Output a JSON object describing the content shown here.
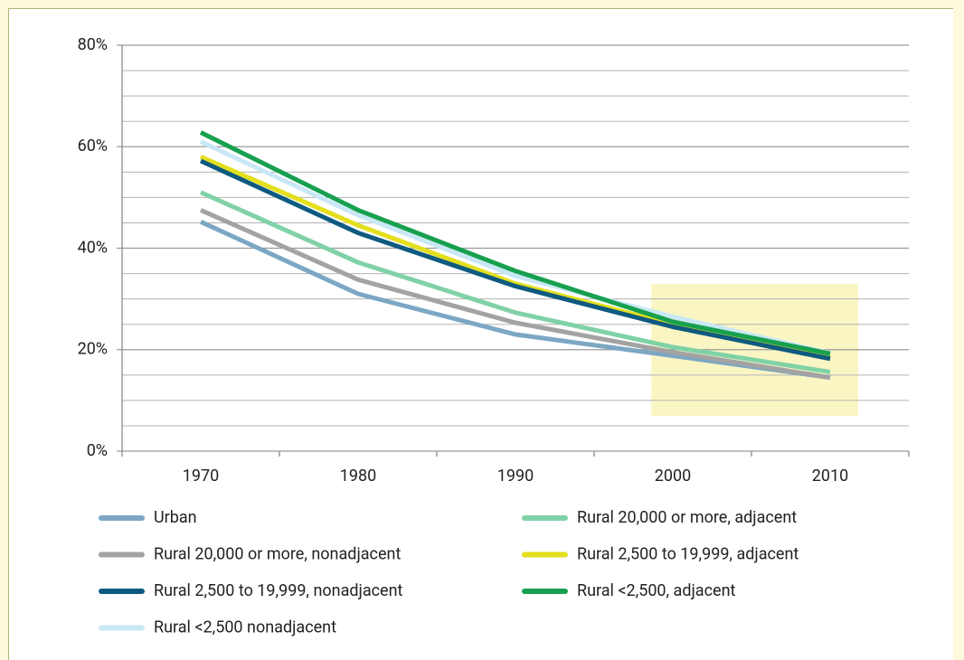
{
  "chart_data": {
    "type": "line",
    "categories": [
      "1970",
      "1980",
      "1990",
      "2000",
      "2010"
    ],
    "series": [
      {
        "name": "Urban",
        "color": "#7ba7c4",
        "values": [
          45.2,
          31,
          23,
          18.8,
          14.5
        ]
      },
      {
        "name": "Rural 20,000 or more, adjacent",
        "color": "#80d2a6",
        "values": [
          51,
          37.2,
          27.3,
          20.5,
          15.6
        ]
      },
      {
        "name": "Rural 20,000 or more, nonadjacent",
        "color": "#a3a3a3",
        "values": [
          47.5,
          33.8,
          25.3,
          19.5,
          14.5
        ]
      },
      {
        "name": "Rural 2,500 to 19,999, adjacent",
        "color": "#e3df1c",
        "values": [
          58,
          44.5,
          33,
          25,
          18.5
        ]
      },
      {
        "name": "Rural 2,500 to 19,999, nonadjacent",
        "color": "#0e5a80",
        "values": [
          57.2,
          43,
          32.5,
          24.5,
          18.2
        ]
      },
      {
        "name": "Rural <2,500, adjacent",
        "color": "#17a04f",
        "values": [
          62.8,
          47.5,
          35.5,
          25.5,
          19.2
        ]
      },
      {
        "name": "Rural <2,500 nonadjacent",
        "color": "#c9e8f5",
        "values": [
          61,
          46.5,
          34.5,
          26.5,
          19.3
        ]
      }
    ],
    "ylim": [
      0,
      80
    ],
    "yticks": [
      {
        "value": 0,
        "label": "0%"
      },
      {
        "value": 20,
        "label": "20%"
      },
      {
        "value": 40,
        "label": "40%"
      },
      {
        "value": 60,
        "label": "60%"
      },
      {
        "value": 80,
        "label": "80%"
      }
    ],
    "minor_yticks": [
      5,
      10,
      15,
      25,
      30,
      35,
      45,
      50,
      55,
      65,
      70,
      75
    ],
    "grid": true
  }
}
